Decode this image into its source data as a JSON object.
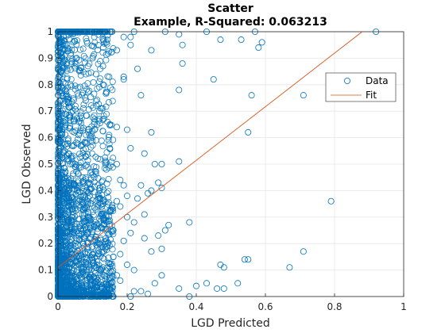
{
  "chart_data": {
    "type": "scatter",
    "title": "Scatter",
    "subtitle": "Example, R-Squared: 0.063213",
    "xlabel": "LGD Predicted",
    "ylabel": "LGD Observed",
    "xlim": [
      0,
      1
    ],
    "ylim": [
      0,
      1
    ],
    "xticks": [
      "0",
      "0.2",
      "0.4",
      "0.6",
      "0.8",
      "1"
    ],
    "yticks": [
      "0",
      "0.1",
      "0.2",
      "0.3",
      "0.4",
      "0.5",
      "0.6",
      "0.7",
      "0.8",
      "0.9",
      "1"
    ],
    "grid": true,
    "legend_position": "top-right",
    "colors": {
      "data": "#0072BD",
      "fit": "#D95319"
    },
    "series": [
      {
        "name": "Data",
        "kind": "scatter",
        "points": [
          [
            0.92,
            1.0
          ],
          [
            0.57,
            1.0
          ],
          [
            0.43,
            1.0
          ],
          [
            0.31,
            1.0
          ],
          [
            0.22,
            1.0
          ],
          [
            0.13,
            1.0
          ],
          [
            0.08,
            1.0
          ],
          [
            0.35,
            0.99
          ],
          [
            0.21,
            0.98
          ],
          [
            0.14,
            0.96
          ],
          [
            0.36,
            0.95
          ],
          [
            0.21,
            0.95
          ],
          [
            0.19,
            0.98
          ],
          [
            0.47,
            0.97
          ],
          [
            0.53,
            0.97
          ],
          [
            0.59,
            0.96
          ],
          [
            0.58,
            0.94
          ],
          [
            0.17,
            0.93
          ],
          [
            0.27,
            0.93
          ],
          [
            0.36,
            0.88
          ],
          [
            0.23,
            0.86
          ],
          [
            0.1,
            0.9
          ],
          [
            0.04,
            0.88
          ],
          [
            0.13,
            0.87
          ],
          [
            0.11,
            0.84
          ],
          [
            0.19,
            0.83
          ],
          [
            0.19,
            0.82
          ],
          [
            0.13,
            0.8
          ],
          [
            0.45,
            0.82
          ],
          [
            0.71,
            0.76
          ],
          [
            0.56,
            0.76
          ],
          [
            0.35,
            0.78
          ],
          [
            0.24,
            0.76
          ],
          [
            0.14,
            0.77
          ],
          [
            0.08,
            0.74
          ],
          [
            0.12,
            0.7
          ],
          [
            0.03,
            0.73
          ],
          [
            0.02,
            0.69
          ],
          [
            0.12,
            0.67
          ],
          [
            0.06,
            0.66
          ],
          [
            0.15,
            0.65
          ],
          [
            0.17,
            0.64
          ],
          [
            0.2,
            0.63
          ],
          [
            0.27,
            0.62
          ],
          [
            0.55,
            0.62
          ],
          [
            0.06,
            0.61
          ],
          [
            0.11,
            0.59
          ],
          [
            0.01,
            0.6
          ],
          [
            0.04,
            0.57
          ],
          [
            0.15,
            0.56
          ],
          [
            0.21,
            0.56
          ],
          [
            0.25,
            0.54
          ],
          [
            0.03,
            0.54
          ],
          [
            0.08,
            0.53
          ],
          [
            0.28,
            0.5
          ],
          [
            0.3,
            0.5
          ],
          [
            0.35,
            0.51
          ],
          [
            0.17,
            0.5
          ],
          [
            0.14,
            0.48
          ],
          [
            0.05,
            0.49
          ],
          [
            0.1,
            0.46
          ],
          [
            0.02,
            0.45
          ],
          [
            0.18,
            0.44
          ],
          [
            0.24,
            0.42
          ],
          [
            0.19,
            0.42
          ],
          [
            0.29,
            0.43
          ],
          [
            0.27,
            0.4
          ],
          [
            0.26,
            0.39
          ],
          [
            0.3,
            0.41
          ],
          [
            0.07,
            0.41
          ],
          [
            0.12,
            0.4
          ],
          [
            0.79,
            0.36
          ],
          [
            0.2,
            0.38
          ],
          [
            0.23,
            0.37
          ],
          [
            0.17,
            0.36
          ],
          [
            0.18,
            0.34
          ],
          [
            0.13,
            0.35
          ],
          [
            0.06,
            0.36
          ],
          [
            0.04,
            0.33
          ],
          [
            0.15,
            0.32
          ],
          [
            0.25,
            0.31
          ],
          [
            0.38,
            0.28
          ],
          [
            0.32,
            0.27
          ],
          [
            0.31,
            0.25
          ],
          [
            0.29,
            0.23
          ],
          [
            0.2,
            0.3
          ],
          [
            0.22,
            0.28
          ],
          [
            0.09,
            0.3
          ],
          [
            0.03,
            0.29
          ],
          [
            0.11,
            0.27
          ],
          [
            0.16,
            0.25
          ],
          [
            0.21,
            0.24
          ],
          [
            0.08,
            0.23
          ],
          [
            0.25,
            0.22
          ],
          [
            0.19,
            0.21
          ],
          [
            0.02,
            0.21
          ],
          [
            0.12,
            0.2
          ],
          [
            0.14,
            0.19
          ],
          [
            0.05,
            0.19
          ],
          [
            0.3,
            0.18
          ],
          [
            0.27,
            0.17
          ],
          [
            0.18,
            0.16
          ],
          [
            0.16,
            0.15
          ],
          [
            0.1,
            0.16
          ],
          [
            0.02,
            0.14
          ],
          [
            0.71,
            0.17
          ],
          [
            0.55,
            0.14
          ],
          [
            0.54,
            0.14
          ],
          [
            0.47,
            0.12
          ],
          [
            0.48,
            0.11
          ],
          [
            0.67,
            0.11
          ],
          [
            0.06,
            0.12
          ],
          [
            0.13,
            0.11
          ],
          [
            0.2,
            0.12
          ],
          [
            0.22,
            0.1
          ],
          [
            0.3,
            0.08
          ],
          [
            0.17,
            0.08
          ],
          [
            0.11,
            0.07
          ],
          [
            0.04,
            0.06
          ],
          [
            0.18,
            0.06
          ],
          [
            0.28,
            0.05
          ],
          [
            0.43,
            0.05
          ],
          [
            0.4,
            0.04
          ],
          [
            0.52,
            0.05
          ],
          [
            0.48,
            0.03
          ],
          [
            0.46,
            0.03
          ],
          [
            0.35,
            0.03
          ],
          [
            0.24,
            0.02
          ],
          [
            0.22,
            0.02
          ],
          [
            0.26,
            0.01
          ],
          [
            0.13,
            0.01
          ],
          [
            0.08,
            0.01
          ],
          [
            0.03,
            0.0
          ],
          [
            0.01,
            0.0
          ],
          [
            0.38,
            0.0
          ],
          [
            0.21,
            0.0
          ],
          [
            0.16,
            0.0
          ]
        ]
      },
      {
        "name": "Fit",
        "kind": "line",
        "points": [
          [
            0.0,
            0.11
          ],
          [
            0.88,
            1.0
          ]
        ]
      }
    ]
  },
  "legend": {
    "items": [
      {
        "label": "Data",
        "symbol": "circle-marker"
      },
      {
        "label": "Fit",
        "symbol": "line"
      }
    ]
  }
}
